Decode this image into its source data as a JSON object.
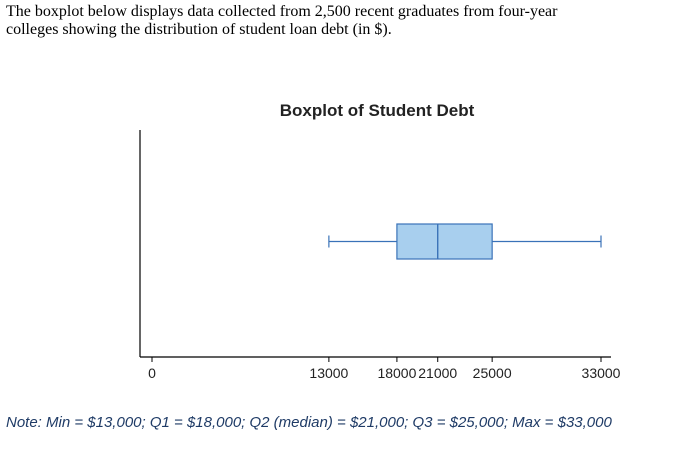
{
  "intro": {
    "line1": "The boxplot below displays data collected from 2,500 recent graduates from four-year",
    "line2": "colleges showing the distribution of student loan debt (in $)."
  },
  "chart_data": {
    "type": "boxplot",
    "title": "Boxplot of Student Debt",
    "xlabel": "",
    "ylabel": "",
    "orientation": "horizontal",
    "xlim": [
      0,
      33000
    ],
    "tick_labels": [
      "0",
      "13000",
      "18000",
      "21000",
      "25000",
      "33000"
    ],
    "tick_values": [
      0,
      13000,
      18000,
      21000,
      25000,
      33000
    ],
    "box": {
      "min": 13000,
      "q1": 18000,
      "median": 21000,
      "q3": 25000,
      "max": 33000
    },
    "grid": false,
    "legend": "none",
    "colors": {
      "box_fill": "#a8cfee",
      "box_stroke": "#3a72b8",
      "whisker": "#3a72b8",
      "axis": "#000000"
    }
  },
  "note": "Note: Min = $13,000; Q1 = $18,000; Q2 (median) = $21,000; Q3 = $25,000; Max = $33,000"
}
